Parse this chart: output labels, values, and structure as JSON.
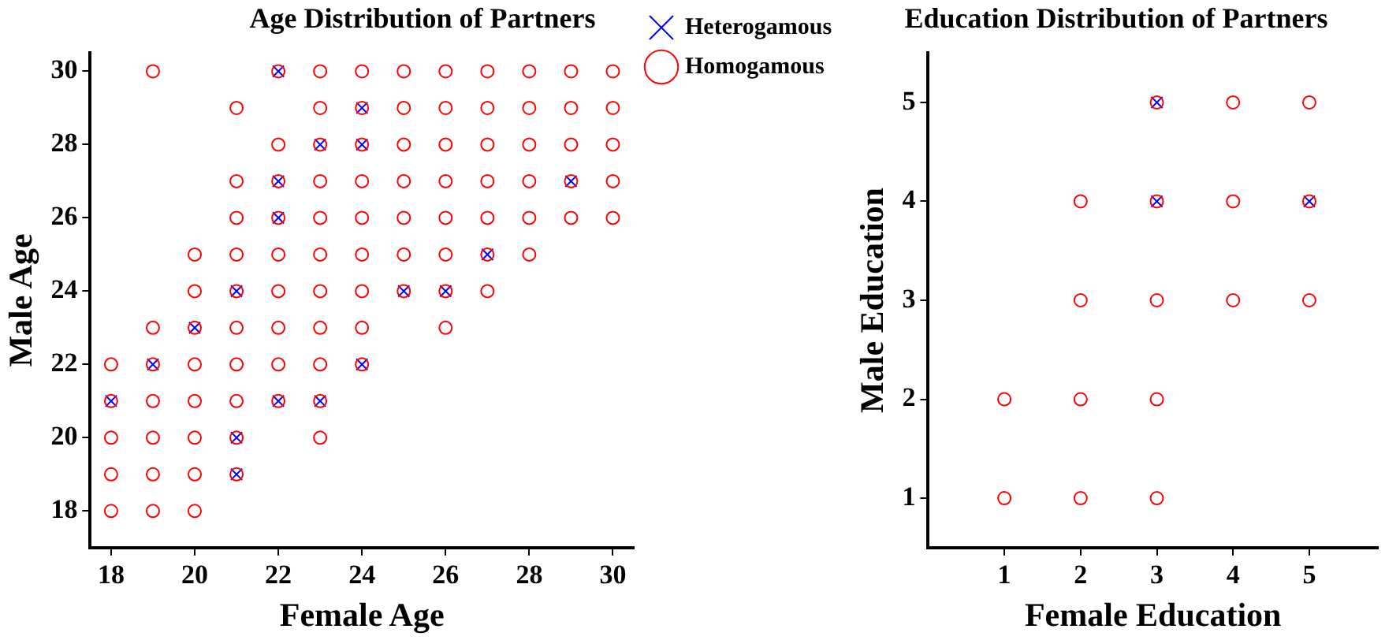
{
  "chart_data": [
    {
      "type": "scatter",
      "title": "Age Distribution of Partners",
      "xlabel": "Female Age",
      "ylabel": "Male Age",
      "xlim": [
        17.5,
        30.5
      ],
      "ylim": [
        17,
        30.5
      ],
      "xticks": [
        18,
        20,
        22,
        24,
        26,
        28,
        30
      ],
      "yticks": [
        18,
        20,
        22,
        24,
        26,
        28,
        30
      ],
      "grid": false,
      "legend": "right",
      "series": [
        {
          "name": "Heterogamous",
          "color": "#0000ff",
          "marker": "cross",
          "x": [
            22,
            24,
            23,
            24,
            22,
            29,
            22,
            27,
            21,
            25,
            26,
            20,
            19,
            24,
            18,
            22,
            23,
            21,
            21
          ],
          "values": [
            30,
            29,
            28,
            28,
            27,
            27,
            26,
            25,
            24,
            24,
            24,
            23,
            22,
            22,
            21,
            21,
            21,
            20,
            19
          ]
        },
        {
          "name": "Homogamous",
          "color": "#ff0000",
          "marker": "circle",
          "x": [
            19,
            22,
            23,
            24,
            25,
            26,
            27,
            28,
            29,
            30,
            21,
            23,
            24,
            25,
            26,
            27,
            28,
            29,
            30,
            22,
            23,
            24,
            25,
            26,
            27,
            28,
            29,
            30,
            21,
            22,
            23,
            24,
            25,
            26,
            27,
            28,
            29,
            30,
            21,
            22,
            23,
            24,
            25,
            26,
            27,
            28,
            29,
            30,
            20,
            21,
            22,
            23,
            24,
            25,
            26,
            27,
            28,
            20,
            21,
            22,
            23,
            24,
            25,
            26,
            27,
            19,
            20,
            21,
            22,
            23,
            24,
            26,
            18,
            19,
            20,
            21,
            22,
            23,
            24,
            18,
            19,
            20,
            21,
            22,
            23,
            18,
            19,
            20,
            21,
            23,
            18,
            19,
            20,
            21,
            18,
            19,
            20
          ],
          "values": [
            30,
            30,
            30,
            30,
            30,
            30,
            30,
            30,
            30,
            30,
            29,
            29,
            29,
            29,
            29,
            29,
            29,
            29,
            29,
            28,
            28,
            28,
            28,
            28,
            28,
            28,
            28,
            28,
            27,
            27,
            27,
            27,
            27,
            27,
            27,
            27,
            27,
            27,
            26,
            26,
            26,
            26,
            26,
            26,
            26,
            26,
            26,
            26,
            25,
            25,
            25,
            25,
            25,
            25,
            25,
            25,
            25,
            24,
            24,
            24,
            24,
            24,
            24,
            24,
            24,
            23,
            23,
            23,
            23,
            23,
            23,
            23,
            22,
            22,
            22,
            22,
            22,
            22,
            22,
            21,
            21,
            21,
            21,
            21,
            21,
            20,
            20,
            20,
            20,
            20,
            19,
            19,
            19,
            19,
            18,
            18,
            18
          ]
        }
      ]
    },
    {
      "type": "scatter",
      "title": "Education Distribution of Partners",
      "xlabel": "Female Education",
      "ylabel": "Male Education",
      "xlim": [
        0,
        5.9
      ],
      "ylim": [
        0.5,
        5.5
      ],
      "xticks": [
        1,
        2,
        3,
        4,
        5
      ],
      "yticks": [
        1,
        2,
        3,
        4,
        5
      ],
      "grid": false,
      "series": [
        {
          "color": "#0000ff",
          "marker": "cross",
          "x": [
            3,
            3,
            5
          ],
          "values": [
            5,
            4,
            4
          ]
        },
        {
          "color": "#ff0000",
          "marker": "circle",
          "x": [
            3,
            4,
            5,
            2,
            3,
            4,
            5,
            2,
            3,
            4,
            5,
            1,
            2,
            3,
            1,
            2,
            3
          ],
          "values": [
            5,
            5,
            5,
            4,
            4,
            4,
            4,
            3,
            3,
            3,
            3,
            2,
            2,
            2,
            1,
            1,
            1
          ]
        }
      ]
    }
  ]
}
